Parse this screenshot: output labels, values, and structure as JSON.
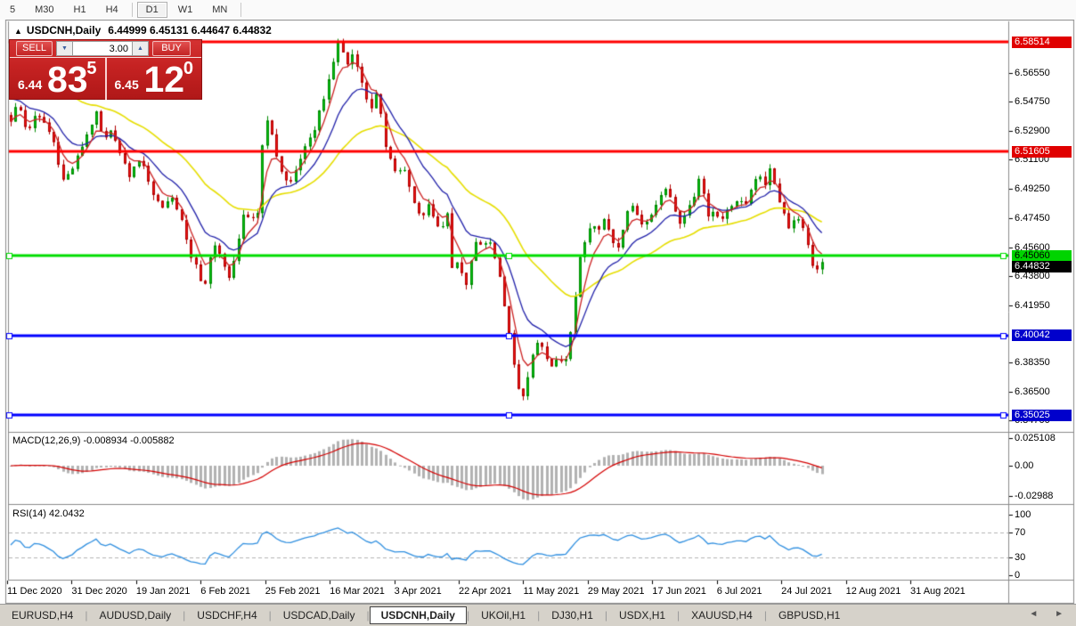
{
  "toolbar": {
    "buttons": [
      "5",
      "M30",
      "H1",
      "H4",
      "D1",
      "W1",
      "MN"
    ],
    "active": "D1",
    "separators_after": [
      "H4",
      "MN"
    ]
  },
  "chart": {
    "collapse_icon": "▲",
    "title_symbol": "USDCNH,Daily",
    "title_ohlc": "6.44999 6.45131 6.44647 6.44832"
  },
  "order_panel": {
    "sell_label": "SELL",
    "buy_label": "BUY",
    "volume_value": "3.00",
    "volume_down_icon": "▼",
    "volume_up_icon": "▲",
    "sell_price_prefix": "6.44",
    "sell_price_big": "83",
    "sell_price_sup": "5",
    "buy_price_prefix": "6.45",
    "buy_price_big": "12",
    "buy_price_sup": "0"
  },
  "price_axis": {
    "ticks": [
      "6.56550",
      "6.54750",
      "6.52900",
      "6.51100",
      "6.49250",
      "6.47450",
      "6.45600",
      "6.43800",
      "6.41950",
      "6.38350",
      "6.36500",
      "6.34700"
    ],
    "badges": [
      {
        "value": "6.58514",
        "bg": "#e00000",
        "fg": "#ffffff"
      },
      {
        "value": "6.51605",
        "bg": "#e00000",
        "fg": "#ffffff"
      },
      {
        "value": "6.45060",
        "bg": "#00d400",
        "fg": "#000000"
      },
      {
        "value": "6.44832",
        "bg": "#000000",
        "fg": "#ffffff"
      },
      {
        "value": "6.40042",
        "bg": "#0000cc",
        "fg": "#ffffff"
      },
      {
        "value": "6.35025",
        "bg": "#0000cc",
        "fg": "#ffffff"
      }
    ]
  },
  "hlines": [
    {
      "price": 6.58514,
      "color": "#ff0000",
      "handles": false
    },
    {
      "price": 6.51605,
      "color": "#ff0000",
      "handles": false
    },
    {
      "price": 6.4506,
      "color": "#00dd00",
      "handles": true
    },
    {
      "price": 6.40042,
      "color": "#0000ff",
      "handles": true
    },
    {
      "price": 6.35025,
      "color": "#0000ff",
      "handles": true
    }
  ],
  "macd": {
    "label": "MACD(12,26,9) -0.008934 -0.005882",
    "axis": [
      "0.025108",
      "0.00",
      "-0.02988"
    ]
  },
  "rsi": {
    "label": "RSI(14) 42.0432",
    "axis": [
      "100",
      "70",
      "30",
      "0"
    ],
    "dashed_levels": [
      70,
      30
    ]
  },
  "date_axis": {
    "labels": [
      "11 Dec 2020",
      "31 Dec 2020",
      "19 Jan 2021",
      "6 Feb 2021",
      "25 Feb 2021",
      "16 Mar 2021",
      "3 Apr 2021",
      "22 Apr 2021",
      "11 May 2021",
      "29 May 2021",
      "17 Jun 2021",
      "6 Jul 2021",
      "24 Jul 2021",
      "12 Aug 2021",
      "31 Aug 2021"
    ]
  },
  "tabs": {
    "items": [
      "EURUSD,H4",
      "AUDUSD,Daily",
      "USDCHF,H4",
      "USDCAD,Daily",
      "USDCNH,Daily",
      "UKOil,H1",
      "DJ30,H1",
      "USDX,H1",
      "XAUUSD,H4",
      "GBPUSD,H1"
    ],
    "active": "USDCNH,Daily",
    "nav_left_icon": "◄",
    "nav_right_icon": "►"
  },
  "chart_data": {
    "type": "candlestick",
    "symbol": "USDCNH",
    "timeframe": "Daily",
    "price_range_visible": [
      6.347,
      6.597
    ],
    "close_path": [
      [
        12,
        6.536
      ],
      [
        20,
        6.547
      ],
      [
        30,
        6.528
      ],
      [
        40,
        6.539
      ],
      [
        50,
        6.534
      ],
      [
        60,
        6.522
      ],
      [
        70,
        6.498
      ],
      [
        80,
        6.504
      ],
      [
        90,
        6.517
      ],
      [
        100,
        6.531
      ],
      [
        108,
        6.54
      ],
      [
        116,
        6.522
      ],
      [
        126,
        6.53
      ],
      [
        136,
        6.512
      ],
      [
        146,
        6.5
      ],
      [
        155,
        6.512
      ],
      [
        163,
        6.504
      ],
      [
        172,
        6.489
      ],
      [
        182,
        6.481
      ],
      [
        192,
        6.488
      ],
      [
        202,
        6.477
      ],
      [
        212,
        6.452
      ],
      [
        222,
        6.444
      ],
      [
        228,
        6.424
      ],
      [
        235,
        6.448
      ],
      [
        242,
        6.46
      ],
      [
        250,
        6.445
      ],
      [
        257,
        6.436
      ],
      [
        265,
        6.455
      ],
      [
        273,
        6.475
      ],
      [
        281,
        6.473
      ],
      [
        289,
        6.478
      ],
      [
        297,
        6.542
      ],
      [
        303,
        6.53
      ],
      [
        311,
        6.512
      ],
      [
        319,
        6.498
      ],
      [
        327,
        6.497
      ],
      [
        335,
        6.51
      ],
      [
        343,
        6.519
      ],
      [
        351,
        6.527
      ],
      [
        359,
        6.543
      ],
      [
        367,
        6.556
      ],
      [
        374,
        6.572
      ],
      [
        380,
        6.587
      ],
      [
        386,
        6.576
      ],
      [
        392,
        6.569
      ],
      [
        397,
        6.581
      ],
      [
        403,
        6.565
      ],
      [
        410,
        6.551
      ],
      [
        417,
        6.544
      ],
      [
        424,
        6.554
      ],
      [
        431,
        6.522
      ],
      [
        438,
        6.513
      ],
      [
        445,
        6.501
      ],
      [
        452,
        6.508
      ],
      [
        459,
        6.494
      ],
      [
        466,
        6.481
      ],
      [
        473,
        6.474
      ],
      [
        480,
        6.484
      ],
      [
        488,
        6.472
      ],
      [
        495,
        6.468
      ],
      [
        502,
        6.476
      ],
      [
        508,
        6.438
      ],
      [
        515,
        6.45
      ],
      [
        521,
        6.427
      ],
      [
        528,
        6.445
      ],
      [
        535,
        6.462
      ],
      [
        542,
        6.456
      ],
      [
        549,
        6.462
      ],
      [
        556,
        6.448
      ],
      [
        563,
        6.43
      ],
      [
        570,
        6.405
      ],
      [
        577,
        6.38
      ],
      [
        584,
        6.36
      ],
      [
        590,
        6.367
      ],
      [
        596,
        6.383
      ],
      [
        602,
        6.396
      ],
      [
        608,
        6.394
      ],
      [
        614,
        6.385
      ],
      [
        620,
        6.38
      ],
      [
        626,
        6.385
      ],
      [
        632,
        6.382
      ],
      [
        638,
        6.392
      ],
      [
        645,
        6.42
      ],
      [
        652,
        6.455
      ],
      [
        658,
        6.462
      ],
      [
        665,
        6.47
      ],
      [
        672,
        6.466
      ],
      [
        679,
        6.475
      ],
      [
        686,
        6.46
      ],
      [
        693,
        6.455
      ],
      [
        700,
        6.47
      ],
      [
        707,
        6.486
      ],
      [
        714,
        6.476
      ],
      [
        721,
        6.47
      ],
      [
        728,
        6.474
      ],
      [
        735,
        6.483
      ],
      [
        742,
        6.489
      ],
      [
        749,
        6.494
      ],
      [
        756,
        6.481
      ],
      [
        763,
        6.472
      ],
      [
        770,
        6.479
      ],
      [
        777,
        6.483
      ],
      [
        783,
        6.502
      ],
      [
        789,
        6.491
      ],
      [
        795,
        6.475
      ],
      [
        802,
        6.48
      ],
      [
        809,
        6.473
      ],
      [
        816,
        6.478
      ],
      [
        823,
        6.483
      ],
      [
        830,
        6.488
      ],
      [
        837,
        6.481
      ],
      [
        844,
        6.495
      ],
      [
        851,
        6.503
      ],
      [
        858,
        6.495
      ],
      [
        865,
        6.507
      ],
      [
        872,
        6.49
      ],
      [
        879,
        6.478
      ],
      [
        886,
        6.468
      ],
      [
        893,
        6.475
      ],
      [
        900,
        6.469
      ],
      [
        907,
        6.458
      ],
      [
        914,
        6.437
      ],
      [
        920,
        6.445
      ],
      [
        923,
        6.448
      ]
    ],
    "moving_averages": [
      {
        "name": "fast",
        "period": 5,
        "color": "#cc2222"
      },
      {
        "name": "medium",
        "period": 13,
        "color": "#2222aa"
      },
      {
        "name": "slow",
        "period": 34,
        "color": "#e6de00"
      }
    ],
    "indicators": [
      {
        "name": "MACD",
        "params": [
          12,
          26,
          9
        ],
        "last_main": -0.008934,
        "last_signal": -0.005882,
        "axis_range": [
          -0.02988,
          0.025108
        ]
      },
      {
        "name": "RSI",
        "params": [
          14
        ],
        "last_value": 42.0432,
        "axis_range": [
          0,
          100
        ]
      }
    ]
  }
}
